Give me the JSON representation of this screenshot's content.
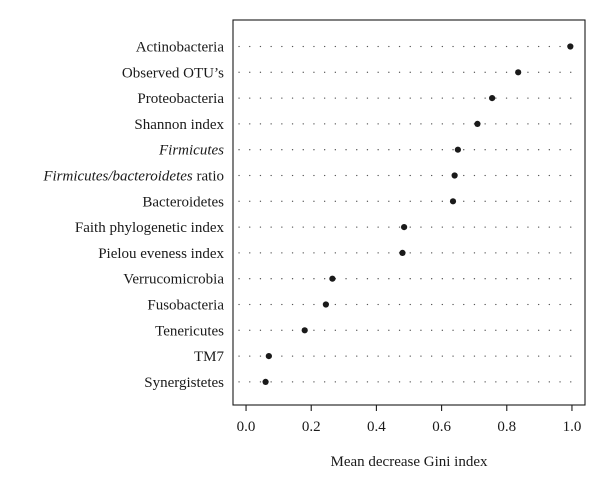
{
  "chart_data": {
    "type": "dot",
    "title": "",
    "xlabel": "Mean decrease Gini index",
    "ylabel": "",
    "xlim": [
      -0.04,
      1.04
    ],
    "xticks": [
      0.0,
      0.2,
      0.4,
      0.6,
      0.8,
      1.0
    ],
    "xtick_labels": [
      "0.0",
      "0.2",
      "0.4",
      "0.6",
      "0.8",
      "1.0"
    ],
    "grid": "dotted guide lines per category",
    "categories": [
      {
        "parts": [
          {
            "text": "Actinobacteria",
            "italic": false
          }
        ]
      },
      {
        "parts": [
          {
            "text": "Observed OTU’s",
            "italic": false
          }
        ]
      },
      {
        "parts": [
          {
            "text": "Proteobacteria",
            "italic": false
          }
        ]
      },
      {
        "parts": [
          {
            "text": "Shannon index",
            "italic": false
          }
        ]
      },
      {
        "parts": [
          {
            "text": "Firmicutes",
            "italic": true
          }
        ]
      },
      {
        "parts": [
          {
            "text": "Firmicutes/bacteroidetes",
            "italic": true
          },
          {
            "text": " ratio",
            "italic": false
          }
        ]
      },
      {
        "parts": [
          {
            "text": "Bacteroidetes",
            "italic": false
          }
        ]
      },
      {
        "parts": [
          {
            "text": "Faith phylogenetic index",
            "italic": false
          }
        ]
      },
      {
        "parts": [
          {
            "text": "Pielou eveness index",
            "italic": false
          }
        ]
      },
      {
        "parts": [
          {
            "text": "Verrucomicrobia",
            "italic": false
          }
        ]
      },
      {
        "parts": [
          {
            "text": "Fusobacteria",
            "italic": false
          }
        ]
      },
      {
        "parts": [
          {
            "text": "Tenericutes",
            "italic": false
          }
        ]
      },
      {
        "parts": [
          {
            "text": "TM7",
            "italic": false
          }
        ]
      },
      {
        "parts": [
          {
            "text": "Synergistetes",
            "italic": false
          }
        ]
      }
    ],
    "values": [
      0.995,
      0.835,
      0.755,
      0.71,
      0.65,
      0.64,
      0.635,
      0.485,
      0.48,
      0.265,
      0.245,
      0.18,
      0.07,
      0.06
    ],
    "colors": {
      "point": "#1a1a1a",
      "guide": "#555555",
      "axis": "#1a1a1a"
    }
  }
}
